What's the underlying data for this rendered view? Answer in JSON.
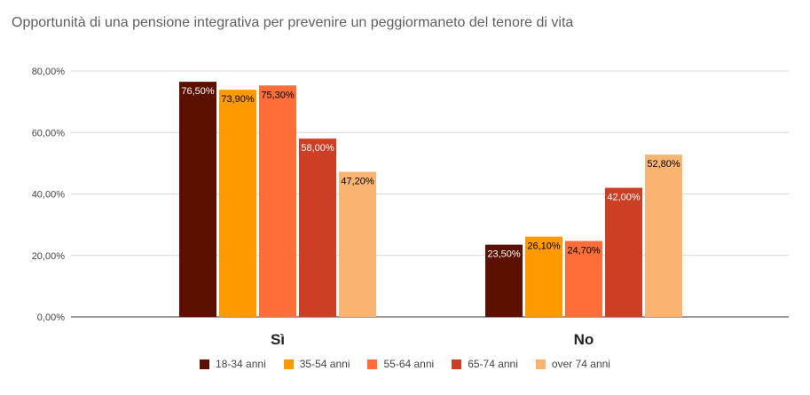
{
  "chart_data": {
    "type": "bar",
    "title": "Opportunità di una pensione integrativa per prevenire un peggiormaneto del tenore di vita",
    "categories": [
      "Sì",
      "No"
    ],
    "series": [
      {
        "name": "18-34 anni",
        "values": [
          76.5,
          23.5
        ],
        "labels": [
          "76,50%",
          "23,50%"
        ],
        "color": "#5c1000",
        "label_color": "#ffffff"
      },
      {
        "name": "35-54 anni",
        "values": [
          73.9,
          26.1
        ],
        "labels": [
          "73,90%",
          "26,10%"
        ],
        "color": "#ff9900",
        "label_color": "#000000"
      },
      {
        "name": "55-64 anni",
        "values": [
          75.3,
          24.7
        ],
        "labels": [
          "75,30%",
          "24,70%"
        ],
        "color": "#ff6d38",
        "label_color": "#000000"
      },
      {
        "name": "65-74 anni",
        "values": [
          58.0,
          42.0
        ],
        "labels": [
          "58,00%",
          "42,00%"
        ],
        "color": "#cc3f24",
        "label_color": "#ffffff"
      },
      {
        "name": "over 74 anni",
        "values": [
          47.2,
          52.8
        ],
        "labels": [
          "47,20%",
          "52,80%"
        ],
        "color": "#f8b470",
        "label_color": "#000000"
      }
    ],
    "yticks": [
      0,
      20,
      40,
      60,
      80
    ],
    "ytick_labels": [
      "0,00%",
      "20,00%",
      "40,00%",
      "60,00%",
      "80,00%"
    ],
    "ylim": [
      0,
      80
    ],
    "grid": true,
    "legend_position": "bottom"
  }
}
